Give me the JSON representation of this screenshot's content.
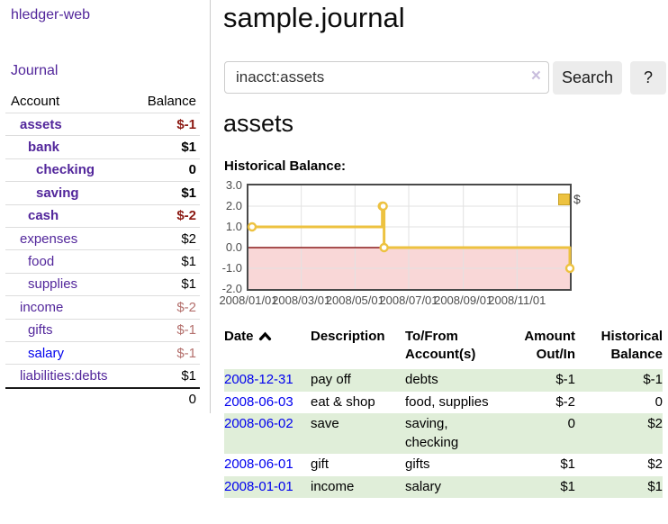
{
  "colors": {
    "link_purple": "#52269b",
    "link_blue": "#0000ee",
    "negative_red": "#8c1a13",
    "negative_red_muted": "#b4706d",
    "row_green": "#e0eed9",
    "chart_yellow": "#edc240",
    "negative_region_pink": "#f9d7d7",
    "zero_line_red": "#8b1a1a"
  },
  "app": {
    "brand": "hledger-web",
    "nav_journal": "Journal"
  },
  "sidebar": {
    "headers": {
      "account": "Account",
      "balance": "Balance"
    },
    "accounts": [
      {
        "name": "assets",
        "depth": 0,
        "bold": true,
        "balance": "$-1",
        "negative": true,
        "muted": false,
        "link_color": "purple"
      },
      {
        "name": "bank",
        "depth": 1,
        "bold": true,
        "balance": "$1",
        "negative": false,
        "muted": false,
        "link_color": "purple"
      },
      {
        "name": "checking",
        "depth": 2,
        "bold": true,
        "balance": "0",
        "negative": false,
        "muted": false,
        "link_color": "purple"
      },
      {
        "name": "saving",
        "depth": 2,
        "bold": true,
        "balance": "$1",
        "negative": false,
        "muted": false,
        "link_color": "purple"
      },
      {
        "name": "cash",
        "depth": 1,
        "bold": true,
        "balance": "$-2",
        "negative": true,
        "muted": false,
        "link_color": "purple"
      },
      {
        "name": "expenses",
        "depth": 0,
        "bold": false,
        "balance": "$2",
        "negative": false,
        "muted": false,
        "link_color": "purple"
      },
      {
        "name": "food",
        "depth": 1,
        "bold": false,
        "balance": "$1",
        "negative": false,
        "muted": false,
        "link_color": "purple"
      },
      {
        "name": "supplies",
        "depth": 1,
        "bold": false,
        "balance": "$1",
        "negative": false,
        "muted": false,
        "link_color": "purple"
      },
      {
        "name": "income",
        "depth": 0,
        "bold": false,
        "balance": "$-2",
        "negative": true,
        "muted": true,
        "link_color": "purple"
      },
      {
        "name": "gifts",
        "depth": 1,
        "bold": false,
        "balance": "$-1",
        "negative": true,
        "muted": true,
        "link_color": "purple"
      },
      {
        "name": "salary",
        "depth": 1,
        "bold": false,
        "balance": "$-1",
        "negative": true,
        "muted": true,
        "link_color": "blue"
      },
      {
        "name": "liabilities:debts",
        "depth": 0,
        "bold": false,
        "balance": "$1",
        "negative": false,
        "muted": false,
        "link_color": "purple"
      }
    ],
    "total": "0"
  },
  "main": {
    "title": "sample.journal",
    "search": {
      "value": "inacct:assets",
      "clear_icon": "×",
      "search_button": "Search",
      "help_button": "?"
    },
    "account_heading": "assets",
    "chart_title": "Historical Balance:"
  },
  "chart_data": {
    "type": "line",
    "title": "Historical Balance:",
    "x_type": "date",
    "xrange": [
      "2008-01-01",
      "2008-12-31"
    ],
    "ylim": [
      -2,
      3
    ],
    "yticks": [
      3.0,
      2.0,
      1.0,
      0.0,
      -1.0,
      -2.0
    ],
    "ytick_labels": [
      "3.0",
      "2.0",
      "1.0",
      "0.0",
      "-1.0",
      "-2.0"
    ],
    "xticks": [
      "2008-01-01",
      "2008-03-01",
      "2008-05-01",
      "2008-07-01",
      "2008-09-01",
      "2008-11-01"
    ],
    "xtick_labels": [
      "2008/01/01",
      "2008/03/01",
      "2008/05/01",
      "2008/07/01",
      "2008/09/01",
      "2008/11/01"
    ],
    "grid": true,
    "legend": {
      "label": "$",
      "position": "top-right"
    },
    "negative_region": true,
    "series": [
      {
        "name": "$",
        "color": "#edc240",
        "step": true,
        "points": [
          [
            "2008-01-01",
            1
          ],
          [
            "2008-06-01",
            2
          ],
          [
            "2008-06-02",
            2
          ],
          [
            "2008-06-03",
            0
          ],
          [
            "2008-12-31",
            -1
          ]
        ]
      }
    ]
  },
  "register": {
    "columns": [
      {
        "lines": [
          "Date"
        ],
        "sortable": true,
        "sorted": "ascending",
        "align": "left"
      },
      {
        "lines": [
          "Description"
        ],
        "align": "left"
      },
      {
        "lines": [
          "To/From",
          "Account(s)"
        ],
        "align": "left"
      },
      {
        "lines": [
          "Amount",
          "Out/In"
        ],
        "align": "right"
      },
      {
        "lines": [
          "Historical",
          "Balance"
        ],
        "align": "right"
      }
    ],
    "rows": [
      {
        "date": "2008-12-31",
        "description": "pay off",
        "accounts": "debts",
        "amount": "$-1",
        "amount_negative": true,
        "balance": "$-1",
        "balance_negative": true,
        "shaded": true
      },
      {
        "date": "2008-06-03",
        "description": "eat & shop",
        "accounts": "food, supplies",
        "amount": "$-2",
        "amount_negative": true,
        "balance": "0",
        "balance_negative": false,
        "shaded": false
      },
      {
        "date": "2008-06-02",
        "description": "save",
        "accounts": "saving, checking",
        "amount": "0",
        "amount_negative": false,
        "balance": "$2",
        "balance_negative": false,
        "shaded": true
      },
      {
        "date": "2008-06-01",
        "description": "gift",
        "accounts": "gifts",
        "amount": "$1",
        "amount_negative": false,
        "balance": "$2",
        "balance_negative": false,
        "shaded": false
      },
      {
        "date": "2008-01-01",
        "description": "income",
        "accounts": "salary",
        "amount": "$1",
        "amount_negative": false,
        "balance": "$1",
        "balance_negative": false,
        "shaded": true
      }
    ]
  }
}
